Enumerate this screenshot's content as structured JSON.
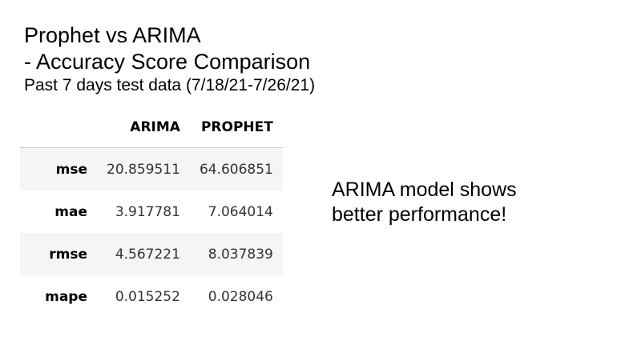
{
  "slide": {
    "title_line1": "Prophet vs ARIMA",
    "title_line2": "- Accuracy Score Comparison",
    "subtitle": "Past 7 days test data (7/18/21-7/26/21)",
    "note_line1": "ARIMA model shows",
    "note_line2": "better performance!"
  },
  "table": {
    "columns": [
      "ARIMA",
      "PROPHET"
    ],
    "rows": [
      {
        "metric": "mse",
        "values": [
          "20.859511",
          "64.606851"
        ]
      },
      {
        "metric": "mae",
        "values": [
          "3.917781",
          "7.064014"
        ]
      },
      {
        "metric": "rmse",
        "values": [
          "4.567221",
          "8.037839"
        ]
      },
      {
        "metric": "mape",
        "values": [
          "0.015252",
          "0.028046"
        ]
      }
    ]
  }
}
